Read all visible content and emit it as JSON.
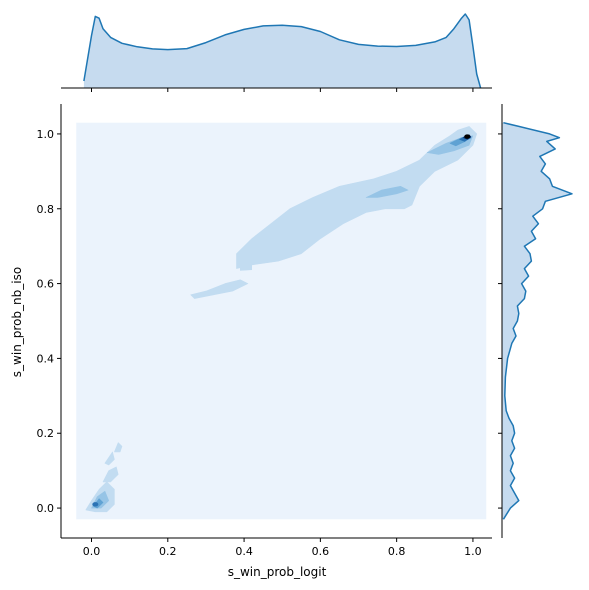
{
  "chart_data": {
    "type": "kde-jointplot",
    "xlabel": "s_win_prob_logit",
    "ylabel": "s_win_prob_nb_iso",
    "xlim": [
      -0.08,
      1.05
    ],
    "ylim": [
      -0.08,
      1.08
    ],
    "x_ticks": [
      0.0,
      0.2,
      0.4,
      0.6,
      0.8,
      1.0
    ],
    "y_ticks": [
      0.0,
      0.2,
      0.4,
      0.6,
      0.8,
      1.0
    ],
    "x_tick_labels": [
      "0.0",
      "0.2",
      "0.4",
      "0.6",
      "0.8",
      "1.0"
    ],
    "y_tick_labels": [
      "0.0",
      "0.2",
      "0.4",
      "0.6",
      "0.8",
      "1.0"
    ],
    "grid": false,
    "colors": {
      "background_fill": "#ebf3fc",
      "level_1": "#c2dcf1",
      "level_2": "#96c4e6",
      "level_3": "#5fa2d3",
      "level_4": "#2b73b5",
      "level_5": "#08306b",
      "peak": "#000000",
      "marginal_line": "#1f77b4",
      "marginal_fill": "#c6dbef"
    },
    "joint_density": {
      "support_x": [
        -0.04,
        1.035
      ],
      "support_y": [
        -0.03,
        1.03
      ],
      "regions": [
        {
          "level": 1,
          "points": [
            [
              0.96,
              1.01
            ],
            [
              0.99,
              1.02
            ],
            [
              1.01,
              1.0
            ],
            [
              1.0,
              0.97
            ],
            [
              0.96,
              0.93
            ],
            [
              0.9,
              0.9
            ],
            [
              0.86,
              0.86
            ],
            [
              0.84,
              0.81
            ],
            [
              0.82,
              0.8
            ],
            [
              0.77,
              0.8
            ],
            [
              0.72,
              0.79
            ],
            [
              0.66,
              0.76
            ],
            [
              0.6,
              0.72
            ],
            [
              0.55,
              0.68
            ],
            [
              0.49,
              0.66
            ],
            [
              0.42,
              0.65
            ],
            [
              0.38,
              0.64
            ],
            [
              0.38,
              0.68
            ],
            [
              0.42,
              0.72
            ],
            [
              0.47,
              0.76
            ],
            [
              0.52,
              0.8
            ],
            [
              0.58,
              0.83
            ],
            [
              0.65,
              0.86
            ],
            [
              0.74,
              0.88
            ],
            [
              0.8,
              0.9
            ],
            [
              0.86,
              0.93
            ],
            [
              0.9,
              0.97
            ],
            [
              0.94,
              0.995
            ]
          ]
        },
        {
          "level": 1,
          "points": [
            [
              0.26,
              0.57
            ],
            [
              0.3,
              0.58
            ],
            [
              0.35,
              0.6
            ],
            [
              0.39,
              0.61
            ],
            [
              0.41,
              0.6
            ],
            [
              0.37,
              0.58
            ],
            [
              0.32,
              0.57
            ],
            [
              0.27,
              0.56
            ]
          ]
        },
        {
          "level": 1,
          "points": [
            [
              0.39,
              0.645
            ],
            [
              0.42,
              0.65
            ],
            [
              0.42,
              0.637
            ],
            [
              0.39,
              0.635
            ]
          ]
        },
        {
          "level": 1,
          "points": [
            [
              -0.015,
              -0.005
            ],
            [
              0.0,
              0.02
            ],
            [
              0.02,
              0.05
            ],
            [
              0.04,
              0.07
            ],
            [
              0.06,
              0.05
            ],
            [
              0.06,
              0.01
            ],
            [
              0.04,
              -0.01
            ],
            [
              0.01,
              -0.01
            ]
          ]
        },
        {
          "level": 1,
          "points": [
            [
              0.03,
              0.07
            ],
            [
              0.045,
              0.1
            ],
            [
              0.065,
              0.11
            ],
            [
              0.07,
              0.09
            ],
            [
              0.05,
              0.07
            ]
          ]
        },
        {
          "level": 1,
          "points": [
            [
              0.035,
              0.12
            ],
            [
              0.055,
              0.15
            ],
            [
              0.06,
              0.13
            ],
            [
              0.045,
              0.115
            ]
          ]
        },
        {
          "level": 1,
          "points": [
            [
              0.06,
              0.15
            ],
            [
              0.07,
              0.175
            ],
            [
              0.08,
              0.165
            ],
            [
              0.075,
              0.15
            ]
          ]
        },
        {
          "level": 2,
          "points": [
            [
              0.72,
              0.83
            ],
            [
              0.76,
              0.85
            ],
            [
              0.81,
              0.86
            ],
            [
              0.83,
              0.85
            ],
            [
              0.8,
              0.84
            ],
            [
              0.75,
              0.83
            ]
          ]
        },
        {
          "level": 2,
          "points": [
            [
              0.88,
              0.95
            ],
            [
              0.93,
              0.975
            ],
            [
              0.97,
              0.99
            ],
            [
              1.0,
              0.995
            ],
            [
              0.99,
              0.97
            ],
            [
              0.95,
              0.955
            ],
            [
              0.91,
              0.945
            ]
          ]
        },
        {
          "level": 2,
          "points": [
            [
              0.0,
              0.0
            ],
            [
              0.015,
              0.03
            ],
            [
              0.035,
              0.045
            ],
            [
              0.045,
              0.02
            ],
            [
              0.025,
              0.0
            ]
          ]
        },
        {
          "level": 3,
          "points": [
            [
              0.94,
              0.975
            ],
            [
              0.97,
              0.99
            ],
            [
              0.99,
              0.995
            ],
            [
              0.98,
              0.98
            ],
            [
              0.955,
              0.968
            ]
          ]
        },
        {
          "level": 3,
          "points": [
            [
              0.005,
              0.005
            ],
            [
              0.02,
              0.025
            ],
            [
              0.03,
              0.015
            ],
            [
              0.015,
              0.0
            ]
          ]
        },
        {
          "level": 4,
          "points": [
            [
              0.965,
              0.985
            ],
            [
              0.985,
              0.998
            ],
            [
              0.995,
              0.99
            ],
            [
              0.978,
              0.98
            ]
          ]
        },
        {
          "level": 5,
          "points": [
            [
              0.975,
              0.99
            ],
            [
              0.99,
              0.998
            ],
            [
              0.995,
              0.992
            ],
            [
              0.985,
              0.986
            ]
          ]
        }
      ],
      "peaks": [
        [
          0.985,
          0.993
        ],
        [
          0.01,
          0.01
        ]
      ]
    },
    "marginal_x": {
      "x": [
        -0.02,
        0.0,
        0.01,
        0.02,
        0.03,
        0.05,
        0.08,
        0.12,
        0.16,
        0.2,
        0.25,
        0.3,
        0.35,
        0.4,
        0.45,
        0.5,
        0.55,
        0.6,
        0.65,
        0.7,
        0.75,
        0.8,
        0.85,
        0.9,
        0.93,
        0.95,
        0.97,
        0.98,
        0.99,
        1.0,
        1.01,
        1.02
      ],
      "density": [
        0.2,
        1.5,
        2.05,
        2.0,
        1.7,
        1.45,
        1.28,
        1.18,
        1.12,
        1.1,
        1.13,
        1.3,
        1.52,
        1.68,
        1.78,
        1.8,
        1.76,
        1.62,
        1.38,
        1.25,
        1.2,
        1.19,
        1.22,
        1.32,
        1.45,
        1.7,
        2.0,
        2.12,
        1.95,
        1.2,
        0.4,
        0.0
      ]
    },
    "marginal_y": {
      "y": [
        -0.03,
        0.0,
        0.02,
        0.04,
        0.06,
        0.08,
        0.1,
        0.12,
        0.14,
        0.16,
        0.18,
        0.2,
        0.22,
        0.24,
        0.26,
        0.3,
        0.35,
        0.4,
        0.44,
        0.46,
        0.48,
        0.5,
        0.52,
        0.54,
        0.56,
        0.58,
        0.6,
        0.62,
        0.64,
        0.66,
        0.68,
        0.7,
        0.72,
        0.74,
        0.76,
        0.78,
        0.8,
        0.82,
        0.84,
        0.86,
        0.88,
        0.9,
        0.92,
        0.94,
        0.96,
        0.98,
        0.99,
        1.0,
        1.02,
        1.03
      ],
      "density": [
        0.05,
        0.3,
        0.6,
        0.45,
        0.3,
        0.45,
        0.3,
        0.4,
        0.3,
        0.45,
        0.35,
        0.45,
        0.4,
        0.25,
        0.15,
        0.1,
        0.12,
        0.2,
        0.35,
        0.5,
        0.4,
        0.55,
        0.6,
        0.55,
        0.8,
        0.85,
        0.7,
        0.95,
        0.8,
        1.05,
        1.0,
        0.8,
        1.2,
        1.05,
        1.3,
        1.1,
        1.45,
        1.55,
        2.5,
        1.8,
        1.7,
        1.4,
        1.55,
        1.35,
        1.9,
        1.6,
        2.05,
        1.7,
        0.6,
        0.05
      ]
    }
  }
}
